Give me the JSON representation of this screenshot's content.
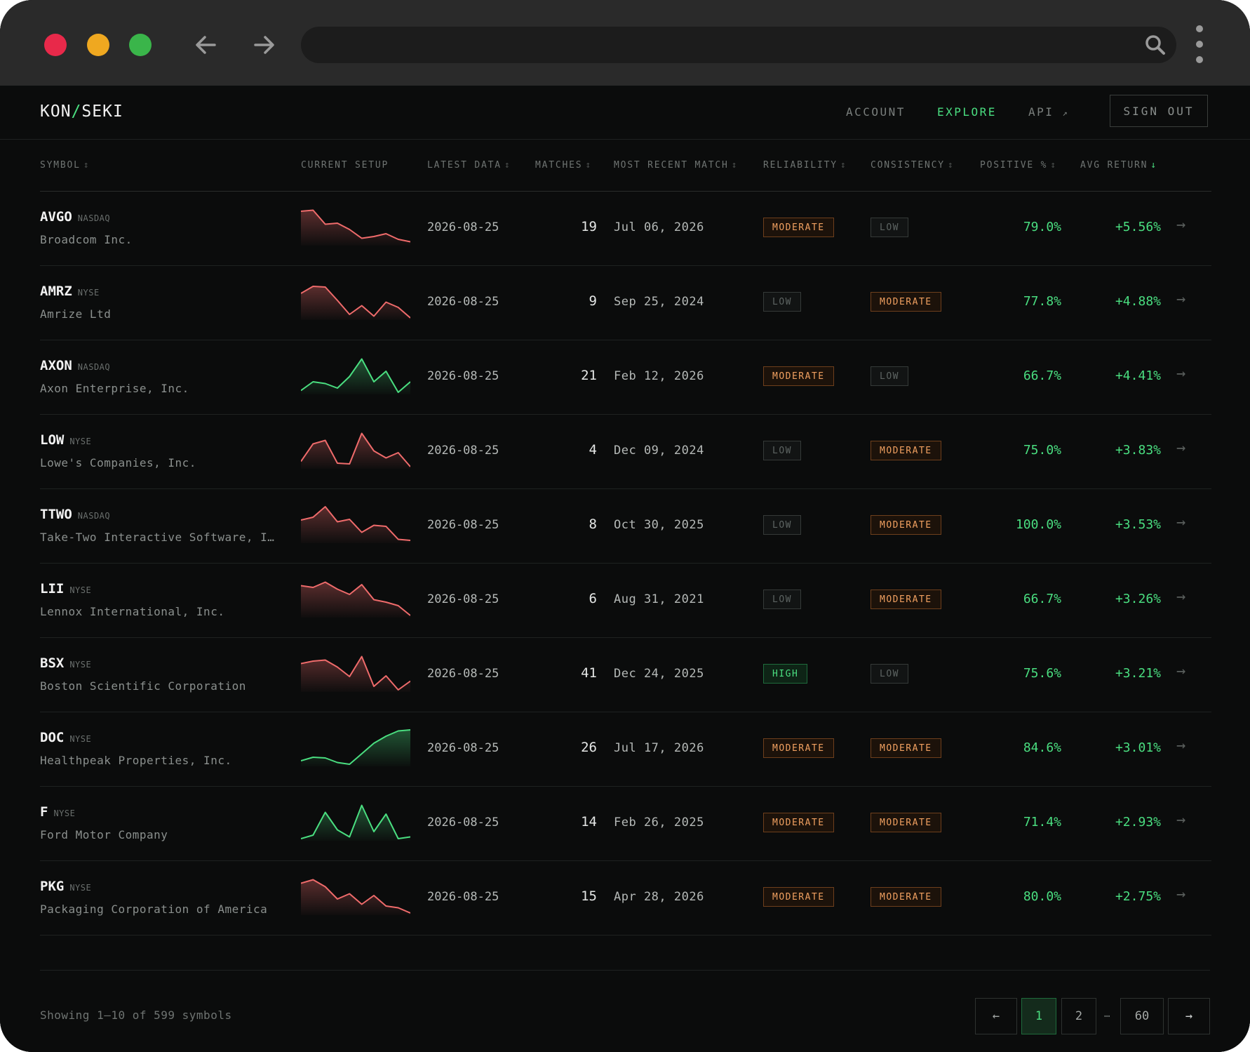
{
  "browser": {
    "dots": [
      "#e8294a",
      "#efa820",
      "#3ab54a"
    ],
    "back_icon": "arrow-left-icon",
    "forward_icon": "arrow-right-icon",
    "search_icon": "search-icon",
    "menu_icon": "kebab-menu-icon"
  },
  "brand": {
    "left": "KON",
    "slash": "/",
    "right": "SEKI"
  },
  "nav": {
    "account": "ACCOUNT",
    "explore": "EXPLORE",
    "api": "API",
    "api_icon": "↗",
    "sign_out": "SIGN OUT"
  },
  "columns": {
    "symbol": "SYMBOL",
    "current_setup": "CURRENT SETUP",
    "latest_data": "LATEST DATA",
    "matches": "MATCHES",
    "most_recent_match": "MOST RECENT MATCH",
    "reliability": "RELIABILITY",
    "consistency": "CONSISTENCY",
    "positive": "POSITIVE %",
    "avg_return": "AVG RETURN",
    "sort_icon": "↕",
    "sort_active_icon": "↓"
  },
  "rows": [
    {
      "symbol": "AVGO",
      "exchange": "NASDAQ",
      "name": "Broadcom Inc.",
      "trend": "down",
      "spark": [
        0.92,
        0.95,
        0.55,
        0.58,
        0.4,
        0.15,
        0.2,
        0.28,
        0.12,
        0.05
      ],
      "latest": "2026-08-25",
      "matches": "19",
      "recent": "Jul 06, 2026",
      "reliability": "MODERATE",
      "consistency": "LOW",
      "positive": "79.0%",
      "avg": "+5.56%"
    },
    {
      "symbol": "AMRZ",
      "exchange": "NYSE",
      "name": "Amrize Ltd",
      "trend": "down",
      "spark": [
        0.7,
        0.9,
        0.88,
        0.5,
        0.1,
        0.35,
        0.05,
        0.45,
        0.3,
        0.0
      ],
      "latest": "2026-08-25",
      "matches": "9",
      "recent": "Sep 25, 2024",
      "reliability": "LOW",
      "consistency": "MODERATE",
      "positive": "77.8%",
      "avg": "+4.88%"
    },
    {
      "symbol": "AXON",
      "exchange": "NASDAQ",
      "name": "Axon Enterprise, Inc.",
      "trend": "up",
      "spark": [
        0.05,
        0.3,
        0.25,
        0.12,
        0.45,
        0.95,
        0.3,
        0.6,
        0.0,
        0.3
      ],
      "latest": "2026-08-25",
      "matches": "21",
      "recent": "Feb 12, 2026",
      "reliability": "MODERATE",
      "consistency": "LOW",
      "positive": "66.7%",
      "avg": "+4.41%"
    },
    {
      "symbol": "LOW",
      "exchange": "NYSE",
      "name": "Lowe's Companies, Inc.",
      "trend": "down",
      "spark": [
        0.15,
        0.65,
        0.75,
        0.1,
        0.08,
        0.95,
        0.45,
        0.25,
        0.4,
        0.0
      ],
      "latest": "2026-08-25",
      "matches": "4",
      "recent": "Dec 09, 2024",
      "reliability": "LOW",
      "consistency": "MODERATE",
      "positive": "75.0%",
      "avg": "+3.83%"
    },
    {
      "symbol": "TTWO",
      "exchange": "NASDAQ",
      "name": "Take-Two Interactive Software, In…",
      "trend": "down",
      "spark": [
        0.6,
        0.68,
        0.98,
        0.55,
        0.62,
        0.25,
        0.45,
        0.42,
        0.05,
        0.02
      ],
      "latest": "2026-08-25",
      "matches": "8",
      "recent": "Oct 30, 2025",
      "reliability": "LOW",
      "consistency": "MODERATE",
      "positive": "100.0%",
      "avg": "+3.53%"
    },
    {
      "symbol": "LII",
      "exchange": "NYSE",
      "name": "Lennox International, Inc.",
      "trend": "down",
      "spark": [
        0.85,
        0.8,
        0.95,
        0.75,
        0.6,
        0.88,
        0.45,
        0.38,
        0.28,
        0.0
      ],
      "latest": "2026-08-25",
      "matches": "6",
      "recent": "Aug 31, 2021",
      "reliability": "LOW",
      "consistency": "MODERATE",
      "positive": "66.7%",
      "avg": "+3.26%"
    },
    {
      "symbol": "BSX",
      "exchange": "NYSE",
      "name": "Boston Scientific Corporation",
      "trend": "down",
      "spark": [
        0.75,
        0.82,
        0.85,
        0.65,
        0.38,
        0.95,
        0.1,
        0.4,
        0.0,
        0.25
      ],
      "latest": "2026-08-25",
      "matches": "41",
      "recent": "Dec 24, 2025",
      "reliability": "HIGH",
      "consistency": "LOW",
      "positive": "75.6%",
      "avg": "+3.21%"
    },
    {
      "symbol": "DOC",
      "exchange": "NYSE",
      "name": "Healthpeak Properties, Inc.",
      "trend": "up",
      "spark": [
        0.1,
        0.2,
        0.18,
        0.05,
        0.0,
        0.3,
        0.6,
        0.8,
        0.95,
        0.98
      ],
      "latest": "2026-08-25",
      "matches": "26",
      "recent": "Jul 17, 2026",
      "reliability": "MODERATE",
      "consistency": "MODERATE",
      "positive": "84.6%",
      "avg": "+3.01%"
    },
    {
      "symbol": "F",
      "exchange": "NYSE",
      "name": "Ford Motor Company",
      "trend": "up",
      "spark": [
        0.0,
        0.1,
        0.75,
        0.25,
        0.05,
        0.95,
        0.2,
        0.7,
        0.0,
        0.05
      ],
      "latest": "2026-08-25",
      "matches": "14",
      "recent": "Feb 26, 2025",
      "reliability": "MODERATE",
      "consistency": "MODERATE",
      "positive": "71.4%",
      "avg": "+2.93%"
    },
    {
      "symbol": "PKG",
      "exchange": "NYSE",
      "name": "Packaging Corporation of America",
      "trend": "down",
      "spark": [
        0.85,
        0.95,
        0.75,
        0.4,
        0.55,
        0.25,
        0.5,
        0.2,
        0.15,
        0.0
      ],
      "latest": "2026-08-25",
      "matches": "15",
      "recent": "Apr 28, 2026",
      "reliability": "MODERATE",
      "consistency": "MODERATE",
      "positive": "80.0%",
      "avg": "+2.75%"
    }
  ],
  "row_action_icon": "→",
  "pagination": {
    "showing": "Showing 1–10 of 599 symbols",
    "prev": "←",
    "pages": [
      "1",
      "2"
    ],
    "ellipsis": "…",
    "last": "60",
    "next": "→"
  },
  "colors": {
    "accent": "#4ade80",
    "down": "#ef6b6b",
    "moderate": "#f0a060"
  }
}
